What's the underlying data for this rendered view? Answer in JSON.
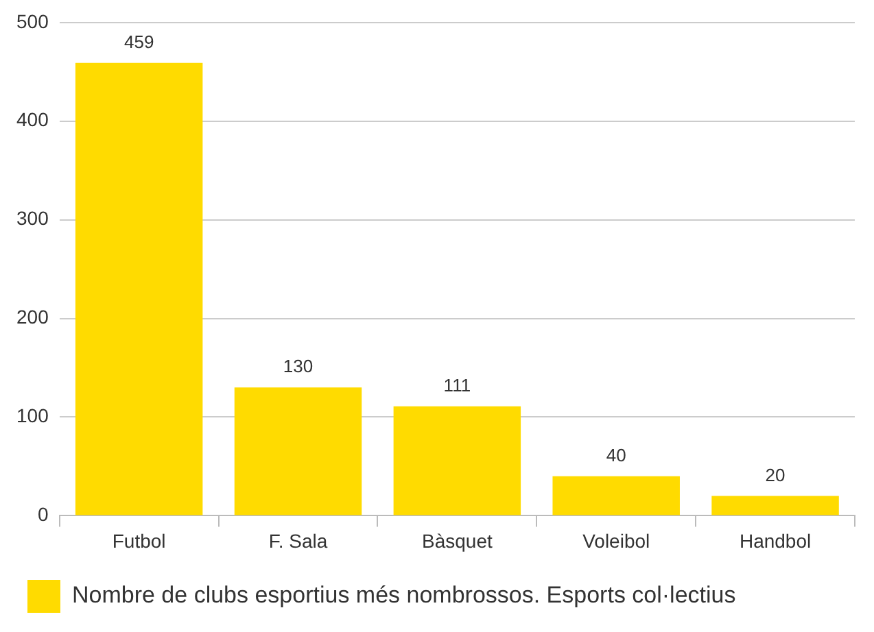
{
  "chart_data": {
    "type": "bar",
    "categories": [
      "Futbol",
      "F. Sala",
      "Bàsquet",
      "Voleibol",
      "Handbol"
    ],
    "series": [
      {
        "name": "Nombre de clubs esportius més nombrossos. Esports col·lectius",
        "color": "#ffdb00",
        "values": [
          459,
          130,
          111,
          40,
          20
        ]
      }
    ],
    "ylim": [
      0,
      500
    ],
    "yticks": [
      0,
      100,
      200,
      300,
      400,
      500
    ],
    "grid": "y",
    "legend": "bottom",
    "data_labels": true
  }
}
